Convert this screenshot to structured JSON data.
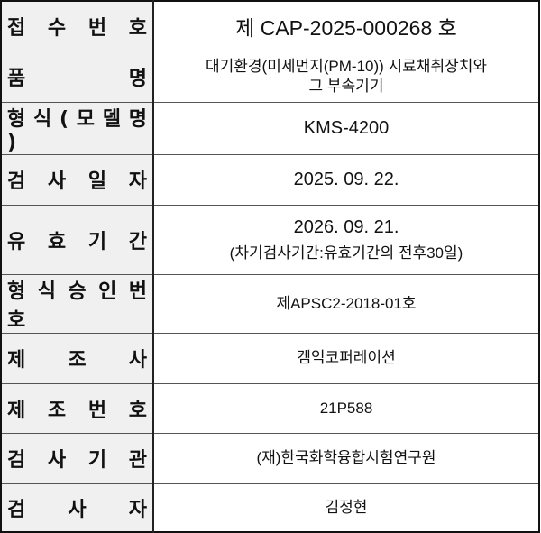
{
  "rows": [
    {
      "label": "접 수 번 호",
      "value": "제 CAP-2025-000268 호"
    },
    {
      "label": "품 명",
      "value_line1": "대기환경(미세먼지(PM-10)) 시료채취장치와",
      "value_line2": "그 부속기기"
    },
    {
      "label": "형 식 ( 모 델 명 )",
      "value": "KMS-4200"
    },
    {
      "label": "검 사 일 자",
      "value": "2025. 09. 22."
    },
    {
      "label": "유 효 기 간",
      "value": "2026. 09. 21.",
      "note": "(차기검사기간:유효기간의 전후30일)"
    },
    {
      "label": "형 식 승 인 번 호",
      "value": "제APSC2-2018-01호"
    },
    {
      "label": "제 조 사",
      "value": "켐익코퍼레이션"
    },
    {
      "label": "제 조 번 호",
      "value": "21P588"
    },
    {
      "label": "검 사 기 관",
      "value": "(재)한국화학융합시험연구원"
    },
    {
      "label": "검 사 자",
      "value": "김정현"
    }
  ]
}
